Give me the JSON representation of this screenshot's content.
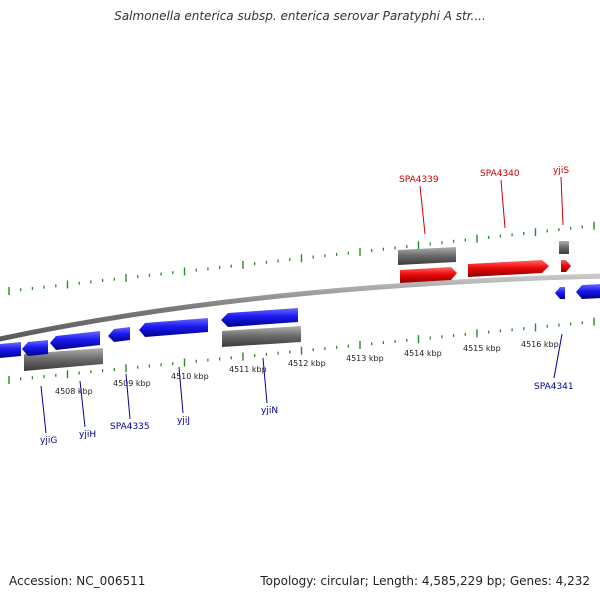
{
  "title": "Salmonella enterica subsp. enterica serovar Paratyphi A str....",
  "footer": {
    "accession": "Accession: NC_006511",
    "topology": "Topology: circular; Length: 4,585,229 bp; Genes: 4,232"
  },
  "colors": {
    "forward_gene": "#e8000b",
    "reverse_gene": "#1010ee",
    "gray_feature": "#707070",
    "ticks": "#2a8a2a",
    "backbone": "#8a8a8a",
    "label_forward": "#cc0000",
    "label_reverse": "#000099"
  },
  "scale_labels": [
    "4508 kbp",
    "4509 kbp",
    "4510 kbp",
    "4511 kbp",
    "4512 kbp",
    "4513 kbp",
    "4514 kbp",
    "4515 kbp",
    "4516 kbp"
  ],
  "gene_labels": {
    "forward": [
      "SPA4339",
      "SPA4340",
      "yjiS"
    ],
    "reverse": [
      "yjiG",
      "yjiH",
      "SPA4335",
      "yjiJ",
      "yjiN",
      "SPA4341"
    ]
  }
}
